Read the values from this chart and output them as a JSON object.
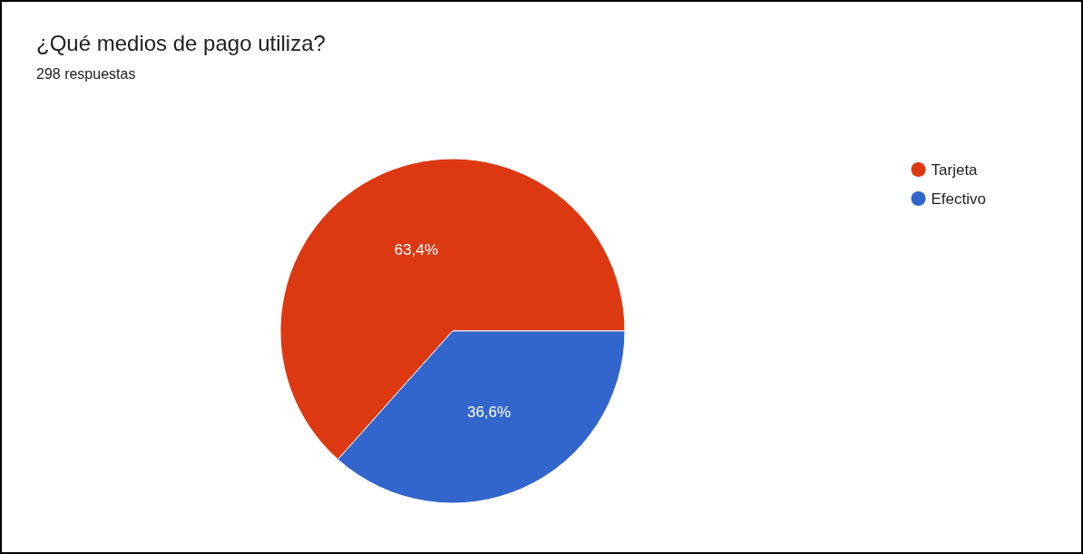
{
  "chart_data": {
    "type": "pie",
    "title": "¿Qué medios de pago utiliza?",
    "subtitle": "298 respuestas",
    "categories": [
      "Tarjeta",
      "Efectivo"
    ],
    "values": [
      63.4,
      36.6
    ],
    "colors": [
      "#dc3912",
      "#3366cc"
    ],
    "value_labels": [
      "63,4%",
      "36,6%"
    ],
    "legend": "top right"
  }
}
